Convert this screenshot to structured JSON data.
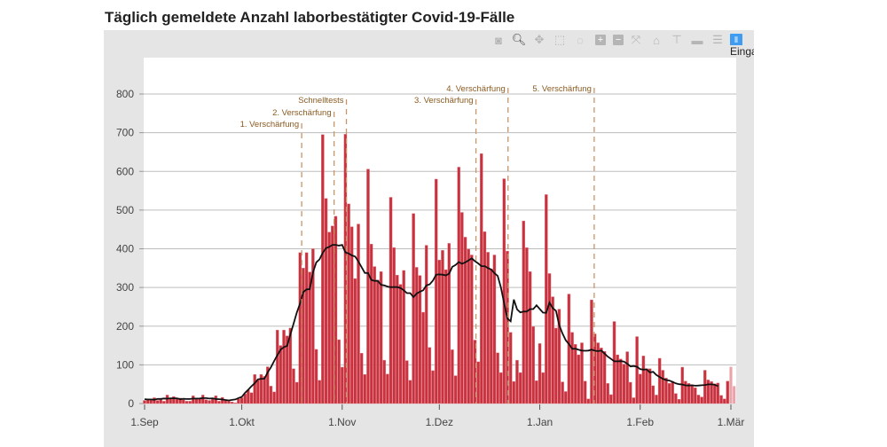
{
  "title": "Täglich gemeldete Anzahl laborbestätigter Covid-19-Fälle",
  "toolbar": {
    "items": [
      {
        "icon": "camera-icon",
        "glyph": "◙"
      },
      {
        "icon": "zoom-icon",
        "glyph": "🔍︎",
        "active": true
      },
      {
        "icon": "pan-icon",
        "glyph": "✥"
      },
      {
        "icon": "box-select-icon",
        "glyph": "⬚"
      },
      {
        "icon": "lasso-select-icon",
        "glyph": "◌"
      },
      {
        "icon": "zoom-in-icon",
        "glyph": "+"
      },
      {
        "icon": "zoom-out-icon",
        "glyph": "−"
      },
      {
        "icon": "autoscale-icon",
        "glyph": "⤧"
      },
      {
        "icon": "home-icon",
        "glyph": "⌂"
      },
      {
        "icon": "spike-lines-icon",
        "glyph": "⊤"
      },
      {
        "icon": "hover-closest-icon",
        "glyph": "▬"
      },
      {
        "icon": "hover-compare-icon",
        "glyph": "☰"
      },
      {
        "icon": "input-data-icon",
        "glyph": "⦀"
      }
    ],
    "tooltip": "Einga"
  },
  "colors": {
    "bar": "#c8313e",
    "bar_provisional": "#eaa3a9",
    "line": "#111111",
    "annotation": "#c7956a",
    "annotation_text": "#8b5a20",
    "grid": "#bdbdbd"
  },
  "chart_data": {
    "type": "bar",
    "title": "Täglich gemeldete Anzahl laborbestätigter Covid-19-Fälle",
    "x_start": "2020-09-01",
    "xlabel": "",
    "ylabel": "",
    "ylim": [
      0,
      940
    ],
    "yticks": [
      0,
      100,
      200,
      300,
      400,
      500,
      600,
      700,
      800
    ],
    "xticks": [
      {
        "day": 0,
        "label": "1.Sep"
      },
      {
        "day": 30,
        "label": "1.Okt"
      },
      {
        "day": 61,
        "label": "1.Nov"
      },
      {
        "day": 91,
        "label": "1.Dez"
      },
      {
        "day": 122,
        "label": "1.Jan"
      },
      {
        "day": 153,
        "label": "1.Feb"
      },
      {
        "day": 181,
        "label": "1.Mär"
      }
    ],
    "grid": true,
    "daily_cases": [
      8,
      12,
      10,
      15,
      8,
      10,
      6,
      22,
      12,
      18,
      12,
      14,
      10,
      6,
      6,
      20,
      14,
      12,
      22,
      10,
      8,
      12,
      20,
      6,
      16,
      10,
      6,
      4,
      2,
      12,
      15,
      25,
      35,
      28,
      75,
      60,
      75,
      70,
      95,
      45,
      30,
      190,
      150,
      190,
      175,
      195,
      90,
      55,
      390,
      350,
      390,
      340,
      400,
      140,
      60,
      695,
      530,
      443,
      459,
      484,
      165,
      94,
      696,
      516,
      457,
      323,
      464,
      130,
      75,
      606,
      412,
      354,
      319,
      341,
      112,
      76,
      533,
      403,
      332,
      308,
      344,
      111,
      60,
      491,
      352,
      331,
      236,
      409,
      145,
      85,
      580,
      371,
      396,
      346,
      414,
      139,
      72,
      611,
      494,
      430,
      399,
      384,
      164,
      108,
      646,
      444,
      391,
      348,
      384,
      131,
      80,
      581,
      394,
      184,
      57,
      112,
      80,
      472,
      403,
      341,
      199,
      59,
      155,
      80,
      540,
      336,
      276,
      195,
      244,
      56,
      31,
      283,
      184,
      153,
      126,
      157,
      58,
      12,
      268,
      180,
      157,
      144,
      135,
      52,
      23,
      212,
      126,
      115,
      102,
      134,
      55,
      15,
      173,
      76,
      123,
      90,
      90,
      46,
      22,
      117,
      86,
      66,
      52,
      57,
      26,
      11,
      94,
      58,
      52,
      47,
      41,
      22,
      17,
      86,
      61,
      57,
      51,
      53,
      21,
      12,
      58
    ],
    "provisional_cases": [
      95,
      45
    ],
    "rolling_average_window": 7,
    "annotations": [
      {
        "day": 48.5,
        "label": "1. Verschärfung"
      },
      {
        "day": 58.5,
        "label": "2. Verschärfung"
      },
      {
        "day": 62.3,
        "label": "Schnelltests"
      },
      {
        "day": 102.3,
        "label": "3. Verschärfung"
      },
      {
        "day": 112.2,
        "label": "4. Verschärfung"
      },
      {
        "day": 138.8,
        "label": "5. Verschärfung"
      }
    ]
  }
}
